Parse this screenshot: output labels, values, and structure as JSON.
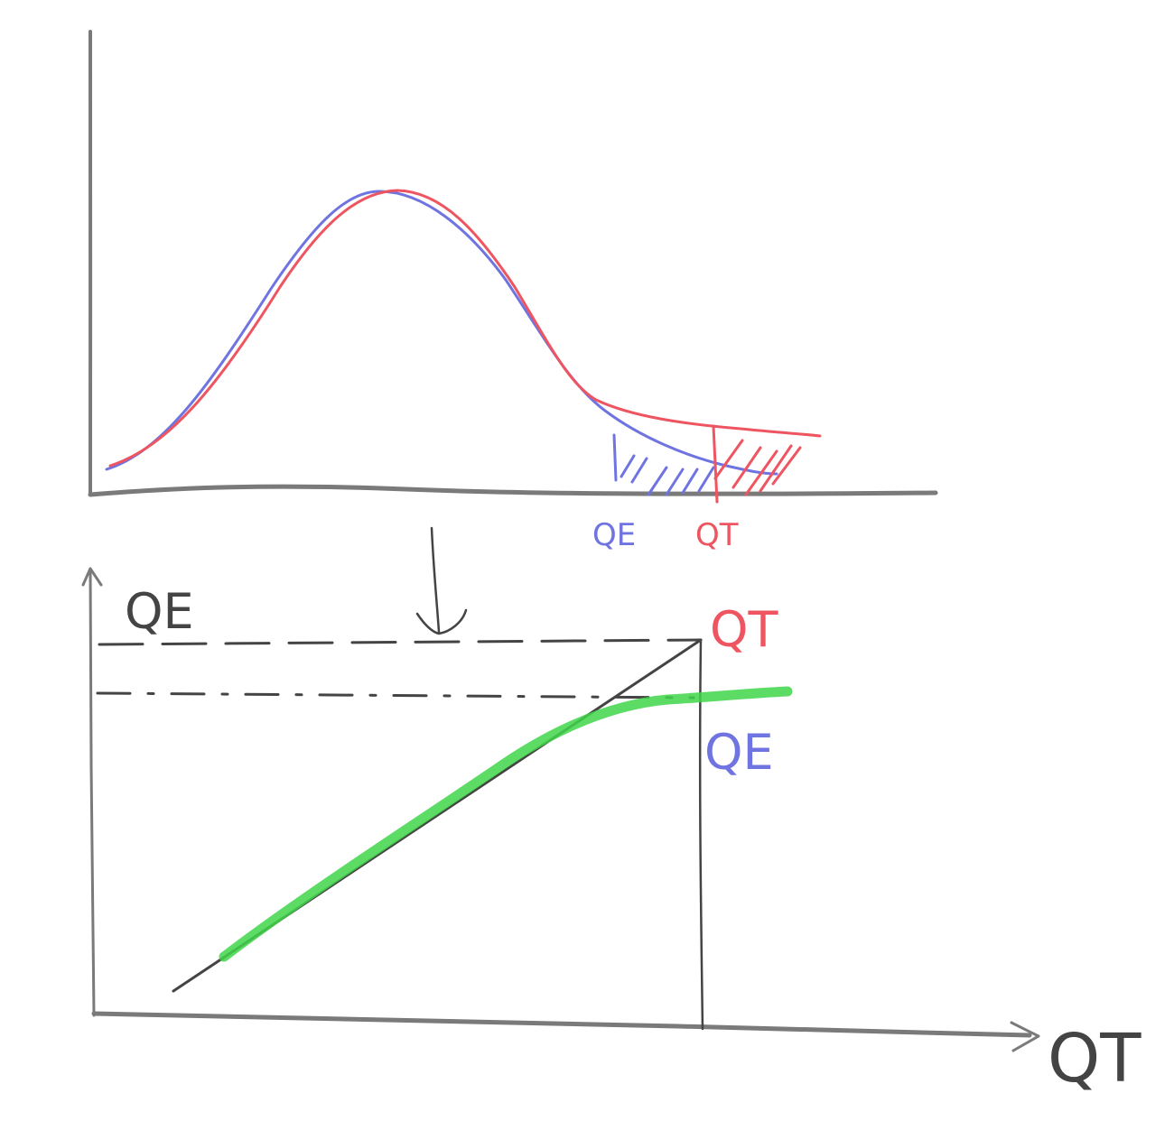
{
  "colors": {
    "axis": "#7a7a7a",
    "ink": "#444444",
    "blue": "#6f74e0",
    "red": "#ee5560",
    "green": "#3fd64a"
  },
  "top_plot": {
    "label_qe": "QE",
    "label_qt": "QT"
  },
  "bottom_plot": {
    "y_axis_label": "QE",
    "x_axis_label": "QT",
    "label_qt": "QT",
    "label_qe": "QE"
  }
}
